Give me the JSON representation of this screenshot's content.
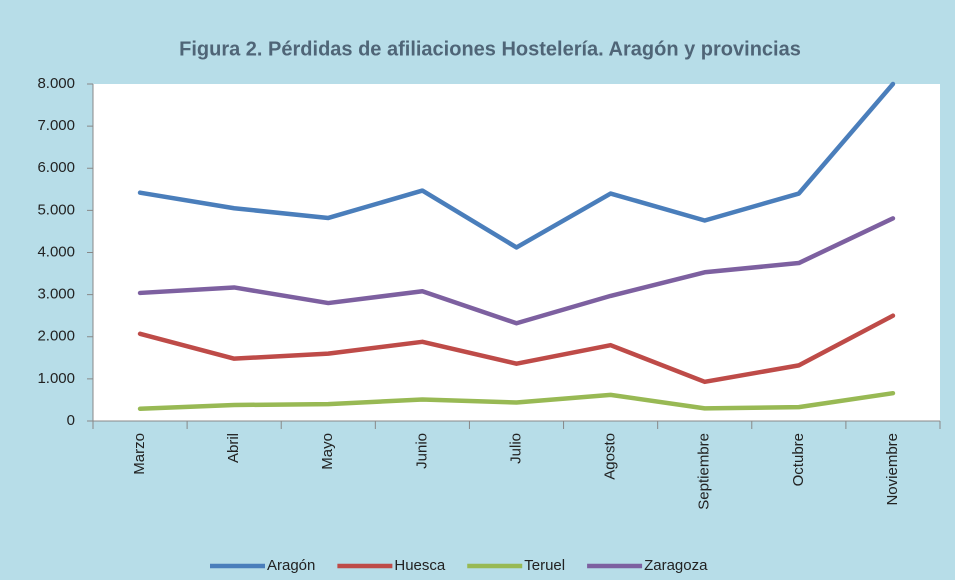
{
  "chart_data": {
    "type": "line",
    "title": "Figura 2. Pérdidas de afiliaciones Hostelería. Aragón y provincias",
    "categories": [
      "Marzo",
      "Abril",
      "Mayo",
      "Junio",
      "Julio",
      "Agosto",
      "Septiembre",
      "Octubre",
      "Noviembre"
    ],
    "series": [
      {
        "name": "Aragón",
        "color": "#4a7ebb",
        "values": [
          5420,
          5050,
          4820,
          5470,
          4120,
          5400,
          4760,
          5400,
          8000
        ]
      },
      {
        "name": "Huesca",
        "color": "#be4b48",
        "values": [
          2070,
          1480,
          1600,
          1880,
          1360,
          1800,
          930,
          1320,
          2500
        ]
      },
      {
        "name": "Teruel",
        "color": "#98b954",
        "values": [
          290,
          380,
          400,
          510,
          440,
          620,
          300,
          330,
          660
        ]
      },
      {
        "name": "Zaragoza",
        "color": "#7d60a0",
        "values": [
          3040,
          3170,
          2800,
          3080,
          2320,
          2970,
          3530,
          3750,
          4810
        ]
      }
    ],
    "ylim": [
      0,
      8000
    ],
    "yticks": [
      0,
      {
        "value": 1000,
        "label": "1.000"
      },
      {
        "value": 2000,
        "label": "2.000"
      },
      {
        "value": 3000,
        "label": "3.000"
      },
      {
        "value": 4000,
        "label": "4.000"
      },
      {
        "value": 5000,
        "label": "5.000"
      },
      {
        "value": 6000,
        "label": "6.000"
      },
      {
        "value": 7000,
        "label": "7.000"
      },
      {
        "value": 8000,
        "label": "8.000"
      }
    ],
    "grid": false,
    "legend": "bottom"
  }
}
